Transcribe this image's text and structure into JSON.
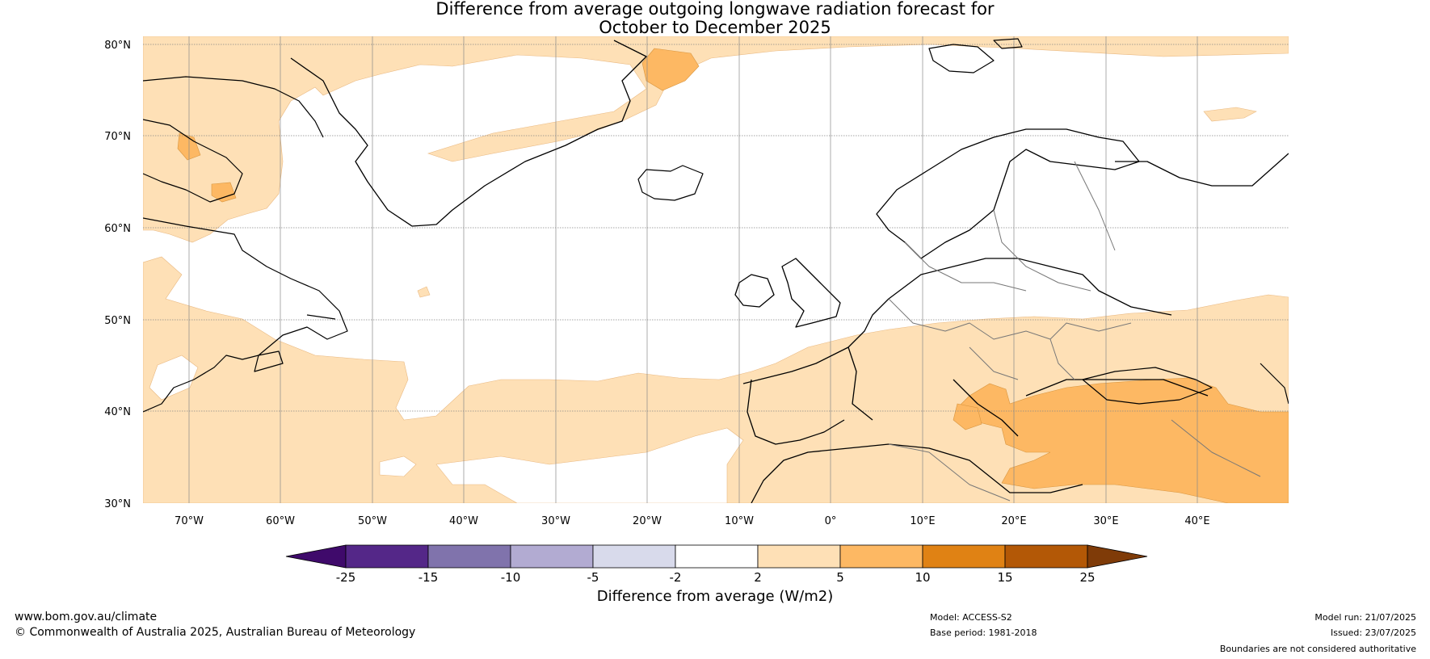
{
  "title": {
    "line1": "Difference from average outgoing longwave radiation forecast for",
    "line2": "October to December 2025"
  },
  "map": {
    "lat_range": [
      30,
      80
    ],
    "lon_range": [
      -75,
      50
    ],
    "lat_labels": [
      "80°N",
      "70°N",
      "60°N",
      "50°N",
      "40°N",
      "30°N"
    ],
    "lon_labels": [
      "70°W",
      "60°W",
      "50°W",
      "40°W",
      "30°W",
      "20°W",
      "10°W",
      "0°",
      "10°E",
      "20°E",
      "30°E",
      "40°E"
    ],
    "gridlines": true
  },
  "colorbar": {
    "label": "Difference from average (W/m2)",
    "ticks": [
      "-25",
      "-15",
      "-10",
      "-5",
      "-2",
      "2",
      "5",
      "10",
      "15",
      "25"
    ],
    "colors": [
      "#3f0a6b",
      "#542788",
      "#8073ac",
      "#b2abd2",
      "#d8daeb",
      "#ffffff",
      "#fee0b6",
      "#fdb863",
      "#e08214",
      "#b35806",
      "#7f3b08"
    ],
    "extend": "both"
  },
  "footer": {
    "url": "www.bom.gov.au/climate",
    "copyright": "© Commonwealth of Australia 2025, Australian Bureau of Meteorology",
    "model": "Model: ACCESS-S2",
    "base_period": "Base period: 1981-2018",
    "model_run": "Model run: 21/07/2025",
    "issued": "Issued: 23/07/2025",
    "disclaimer": "Boundaries are not considered authoritative"
  }
}
